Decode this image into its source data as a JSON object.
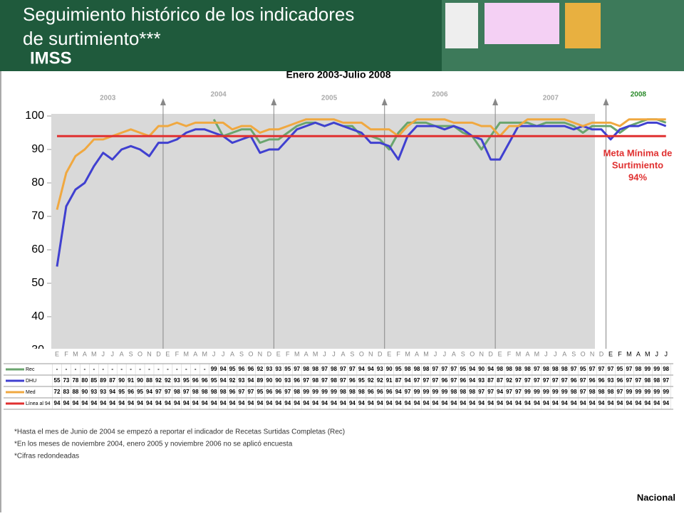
{
  "header": {
    "title_lines": [
      "Seguimiento histórico de los indicadores",
      "de surtimiento***"
    ],
    "logo": "IMSS"
  },
  "chart_data": {
    "type": "line",
    "subtitle": "Enero 2003-Julio 2008",
    "years": [
      "2003",
      "2004",
      "2005",
      "2006",
      "2007",
      "2008"
    ],
    "categories": [
      "E",
      "F",
      "M",
      "A",
      "M",
      "J",
      "J",
      "A",
      "S",
      "O",
      "N",
      "D",
      "E",
      "F",
      "M",
      "A",
      "M",
      "J",
      "J",
      "A",
      "S",
      "O",
      "N",
      "D",
      "E",
      "F",
      "M",
      "A",
      "M",
      "J",
      "J",
      "A",
      "S",
      "O",
      "N",
      "D",
      "E",
      "F",
      "M",
      "A",
      "M",
      "J",
      "J",
      "A",
      "S",
      "O",
      "N",
      "D",
      "E",
      "F",
      "M",
      "A",
      "M",
      "J",
      "J",
      "A",
      "S",
      "O",
      "N",
      "D",
      "E",
      "F",
      "M",
      "A",
      "M",
      "J",
      "J"
    ],
    "ylim": [
      30,
      100
    ],
    "yticks": [
      30,
      40,
      50,
      60,
      70,
      80,
      90,
      100
    ],
    "missing_label": "-",
    "series": [
      {
        "name": "Rec",
        "color": "#6aa56e",
        "values": [
          null,
          null,
          null,
          null,
          null,
          null,
          null,
          null,
          null,
          null,
          null,
          null,
          null,
          null,
          null,
          null,
          null,
          99,
          94,
          95,
          96,
          96,
          92,
          93,
          93,
          95,
          97,
          98,
          98,
          97,
          98,
          97,
          97,
          94,
          94,
          93,
          90,
          95,
          98,
          98,
          98,
          97,
          97,
          97,
          95,
          94,
          90,
          94,
          98,
          98,
          98,
          98,
          97,
          98,
          98,
          98,
          97,
          95,
          97,
          97,
          97,
          95,
          97,
          98,
          99,
          99,
          98
        ]
      },
      {
        "name": "DHU",
        "color": "#4040d0",
        "values": [
          55,
          73,
          78,
          80,
          85,
          89,
          87,
          90,
          91,
          90,
          88,
          92,
          92,
          93,
          95,
          96,
          96,
          95,
          94,
          92,
          93,
          94,
          89,
          90,
          90,
          93,
          96,
          97,
          98,
          97,
          98,
          97,
          96,
          95,
          92,
          92,
          91,
          87,
          94,
          97,
          97,
          97,
          96,
          97,
          96,
          94,
          93,
          87,
          87,
          92,
          97,
          97,
          97,
          97,
          97,
          97,
          96,
          97,
          96,
          96,
          93,
          96,
          97,
          97,
          98,
          98,
          97
        ]
      },
      {
        "name": "Med",
        "color": "#f0a840",
        "values": [
          72,
          83,
          88,
          90,
          93,
          93,
          94,
          95,
          96,
          95,
          94,
          97,
          97,
          98,
          97,
          98,
          98,
          98,
          98,
          96,
          97,
          97,
          95,
          96,
          96,
          97,
          98,
          99,
          99,
          99,
          99,
          98,
          98,
          98,
          96,
          96,
          96,
          94,
          97,
          99,
          99,
          99,
          99,
          98,
          98,
          98,
          97,
          97,
          94,
          97,
          97,
          99,
          99,
          99,
          99,
          99,
          98,
          97,
          98,
          98,
          98,
          97,
          99,
          99,
          99,
          99,
          99
        ]
      },
      {
        "name": "Línea al 94",
        "color": "#e03030",
        "values": [
          94,
          94,
          94,
          94,
          94,
          94,
          94,
          94,
          94,
          94,
          94,
          94,
          94,
          94,
          94,
          94,
          94,
          94,
          94,
          94,
          94,
          94,
          94,
          94,
          94,
          94,
          94,
          94,
          94,
          94,
          94,
          94,
          94,
          94,
          94,
          94,
          94,
          94,
          94,
          94,
          94,
          94,
          94,
          94,
          94,
          94,
          94,
          94,
          94,
          94,
          94,
          94,
          94,
          94,
          94,
          94,
          94,
          94,
          94,
          94,
          94,
          94,
          94,
          94,
          94,
          94,
          94
        ]
      }
    ],
    "annotation_lines": [
      "Meta Mínima de",
      "Surtimiento",
      "94%"
    ]
  },
  "footnotes": [
    "*Hasta el mes de Junio de 2004  se empezó a reportar el indicador de Recetas Surtidas Completas (Rec)",
    "*En los meses de noviembre 2004, enero 2005 y noviembre 2006 no se aplicó encuesta",
    "*Cifras redondeadas"
  ],
  "scope": "Nacional"
}
